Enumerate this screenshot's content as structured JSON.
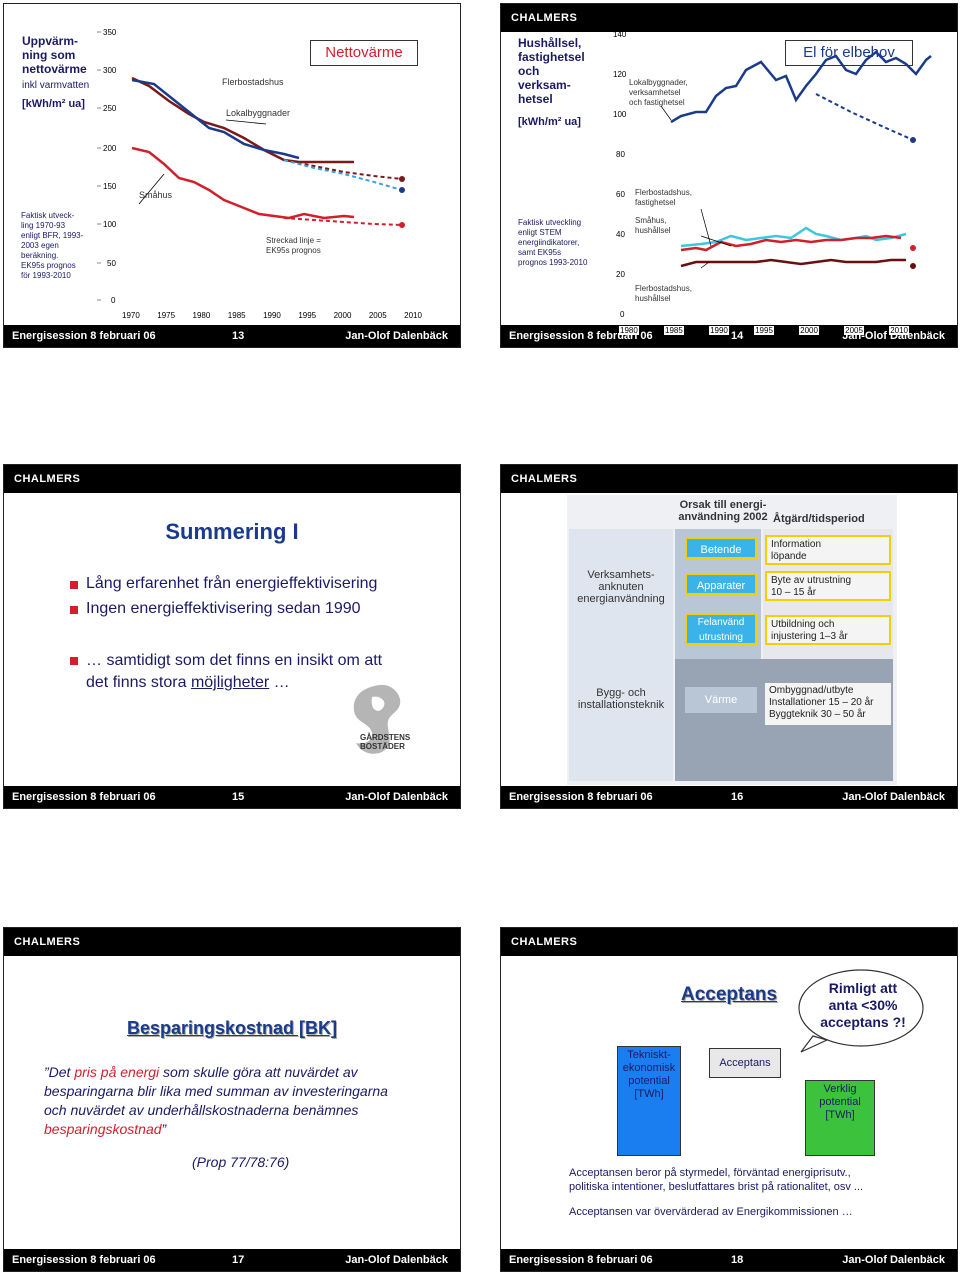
{
  "logo": "CHALMERS",
  "footer": {
    "event": "Energisession 8 februari 06",
    "author": "Jan-Olof Dalenbäck"
  },
  "slide13": {
    "page": "13",
    "title_lines": [
      "Uppvärm-",
      "ning som",
      "nettovärme"
    ],
    "subtitle": "inkl varmvatten",
    "unit": "[kWh/m² ua]",
    "box_title": "Nettovärme",
    "left_note": [
      "Faktisk utveck-",
      "ling 1970-93",
      "enligt BFR, 1993-",
      "2003 egen",
      "beräkning.",
      "EK95s prognos",
      "för 1993-2010"
    ],
    "labels": {
      "flerbostadshus": "Flerbostadshus",
      "lokalbyggnader": "Lokalbyggnader",
      "smahus": "Småhus",
      "streckad": [
        "Streckad linje =",
        "EK95s prognos"
      ]
    },
    "y_ticks": [
      "350",
      "300",
      "250",
      "200",
      "150",
      "100",
      "50",
      "0"
    ],
    "x_ticks": [
      "1970",
      "1975",
      "1980",
      "1985",
      "1990",
      "1995",
      "2000",
      "2005",
      "2010"
    ]
  },
  "slide14": {
    "page": "14",
    "title_lines": [
      "Hushållsel,",
      "fastighetsel",
      "och",
      "verksam-",
      "hetsel"
    ],
    "unit": "[kWh/m² ua]",
    "box_title": "El för elbehov",
    "left_note": [
      "Faktisk utveckling",
      "enligt STEM",
      "energiindikatorer,",
      "samt EK95s",
      "prognos 1993-2010"
    ],
    "labels": {
      "lokal": [
        "Lokalbyggnader,",
        "verksamhetsel",
        "och fastighetsel"
      ],
      "fler_fast": [
        "Flerbostadshus,",
        "fastighetsel"
      ],
      "smahus": [
        "Småhus,",
        "hushållsel"
      ],
      "fler_hush": [
        "Flerbostadshus,",
        "hushållsel"
      ]
    },
    "y_ticks": [
      "140",
      "120",
      "100",
      "80",
      "60",
      "40",
      "20",
      "0"
    ],
    "x_ticks": [
      "1980",
      "1985",
      "1990",
      "1995",
      "2000",
      "2005",
      "2010"
    ]
  },
  "slide15": {
    "page": "15",
    "title": "Summering I",
    "bullets": [
      "Lång erfarenhet från energieffektivisering",
      "Ingen energieffektivisering sedan 1990"
    ],
    "bullet3_line1": "… samtidigt som det finns en insikt om att",
    "bullet3_line2_pre": "det finns stora ",
    "bullet3_link": "möjligheter",
    "bullet3_post": " …",
    "logo_text": [
      "GÅRDSTENS",
      "BOSTÄDER"
    ]
  },
  "slide16": {
    "page": "16",
    "header_cause": [
      "Orsak till energi-",
      "användning 2002"
    ],
    "header_action": "Åtgärd/tidsperiod",
    "left_labels": {
      "verksamhet": [
        "Verksamhets-",
        "anknuten",
        "energianvändning"
      ],
      "bygg": [
        "Bygg- och",
        "installationsteknik"
      ]
    },
    "center_boxes": [
      "Betende",
      "Apparater",
      "Felanvänd utrustning",
      "Värme"
    ],
    "right_boxes": [
      [
        "Information",
        "löpande"
      ],
      [
        "Byte av utrustning",
        "10 – 15 år"
      ],
      [
        "Utbildning och",
        "injustering 1–3 år"
      ],
      [
        "Ombyggnad/utbyte",
        "Installationer 15 – 20 år",
        "Byggteknik 30 – 50 år"
      ]
    ]
  },
  "slide17": {
    "page": "17",
    "title": "Besparingskostnad [BK]",
    "quote": [
      [
        {
          "t": "”Det ",
          "c": "black"
        },
        {
          "t": "pris på energi",
          "c": "red"
        },
        {
          "t": " som skulle göra att nuvärdet av",
          "c": "black"
        }
      ],
      [
        {
          "t": "besparingarna blir lika med summan av investeringarna",
          "c": "black"
        }
      ],
      [
        {
          "t": "och nuvärdet av underhållskostnaderna benämnes",
          "c": "black"
        }
      ],
      [
        {
          "t": "besparingskostnad",
          "c": "red"
        },
        {
          "t": "”",
          "c": "black"
        }
      ]
    ],
    "reference": "(Prop 77/78:76)"
  },
  "slide18": {
    "page": "18",
    "title": "Acceptans",
    "cloud": [
      "Rimligt att",
      "anta <30%",
      "acceptans ?!"
    ],
    "box1": [
      "Tekniskt-",
      "ekonomisk",
      "potential",
      "[TWh]"
    ],
    "box2": "Acceptans",
    "box3": [
      "Verklig",
      "potential",
      "[TWh]"
    ],
    "text1": [
      "Acceptansen beror på styrmedel, förväntad energiprisutv.,",
      "politiska intentioner, beslutfattares brist på rationalitet, osv ..."
    ],
    "text2": "Acceptansen var övervärderad av Energikommissionen …"
  }
}
